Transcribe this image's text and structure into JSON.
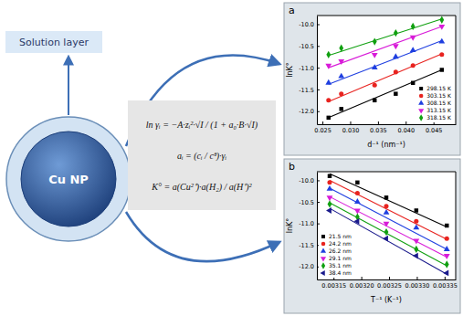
{
  "diagram": {
    "solution_layer": "Solution layer",
    "particle": "Cu NP",
    "equations": [
      "ln γᵢ = −A·zᵢ²·√I / (1 + a₀·B·√I)",
      "aᵢ = (cᵢ / cᶿ)·γᵢ",
      "K° = a(Cu²⁺)·a(H₂) / a(H⁺)²"
    ]
  },
  "chart_data": [
    {
      "type": "scatter",
      "title": "a",
      "x_label": "d⁻¹ (nm⁻¹)",
      "y_label": "lnK°",
      "x": [
        0.0261,
        0.0284,
        0.0344,
        0.0382,
        0.0413,
        0.0465
      ],
      "xlim": [
        0.024,
        0.049
      ],
      "xticks": [
        0.025,
        {
          "value": 0.03,
          "label": "0.030"
        },
        0.035,
        {
          "value": 0.04,
          "label": "0.040"
        },
        0.045
      ],
      "ylim": [
        -12.3,
        -9.8
      ],
      "yticks": [
        {
          "value": -12,
          "label": "-12.0"
        },
        -11.5,
        {
          "value": -11,
          "label": "-11.0"
        },
        -10.5,
        {
          "value": -10,
          "label": "-10.0"
        }
      ],
      "legend": "lower right",
      "series": [
        {
          "name": "298.15 K",
          "color": "#000000",
          "marker": "square",
          "values": [
            -12.15,
            -11.95,
            -11.75,
            -11.6,
            -11.35,
            -11.05
          ],
          "fit": [
            -12.15,
            -11.05
          ]
        },
        {
          "name": "303.15 K",
          "color": "#e8231f",
          "marker": "circle",
          "values": [
            -11.75,
            -11.6,
            -11.4,
            -11.1,
            -10.95,
            -10.7
          ],
          "fit": [
            -11.78,
            -10.68
          ]
        },
        {
          "name": "308.15 K",
          "color": "#1f3fe0",
          "marker": "triangle-up",
          "values": [
            -11.35,
            -11.2,
            -11.0,
            -10.75,
            -10.6,
            -10.4
          ],
          "fit": [
            -11.38,
            -10.38
          ]
        },
        {
          "name": "313.15 K",
          "color": "#d81bd8",
          "marker": "triangle-down",
          "values": [
            -10.95,
            -10.85,
            -10.7,
            -10.5,
            -10.3,
            -10.05
          ],
          "fit": [
            -11.0,
            -10.05
          ]
        },
        {
          "name": "318.15 K",
          "color": "#10a010",
          "marker": "diamond",
          "values": [
            -10.7,
            -10.55,
            -10.4,
            -10.2,
            -10.05,
            -9.9
          ],
          "fit": [
            -10.72,
            -9.88
          ]
        }
      ]
    },
    {
      "type": "scatter",
      "title": "b",
      "x_label": "T⁻¹ (K⁻¹)",
      "y_label": "lnK°",
      "x": [
        0.003143,
        0.003193,
        0.003245,
        0.003299,
        0.003354
      ],
      "xlim": [
        0.00312,
        0.00337
      ],
      "xticks": [
        0.00315,
        {
          "value": 0.0032,
          "label": "0.00320"
        },
        0.00325,
        {
          "value": 0.0033,
          "label": "0.00330"
        },
        0.00335
      ],
      "ylim": [
        -12.3,
        -9.8
      ],
      "yticks": [
        {
          "value": -12,
          "label": "-12.0"
        },
        -11.5,
        {
          "value": -11,
          "label": "-11.0"
        },
        -10.5,
        {
          "value": -10,
          "label": "-10.0"
        }
      ],
      "legend": "lower left",
      "series": [
        {
          "name": "21.5 nm",
          "color": "#000000",
          "marker": "square",
          "values": [
            -9.9,
            -10.05,
            -10.4,
            -10.7,
            -11.05
          ],
          "fit": [
            -9.85,
            -11.08
          ]
        },
        {
          "name": "24.2 nm",
          "color": "#e8231f",
          "marker": "circle",
          "values": [
            -10.05,
            -10.3,
            -10.6,
            -10.95,
            -11.35
          ],
          "fit": [
            -10.0,
            -11.37
          ]
        },
        {
          "name": "26.2 nm",
          "color": "#1f3fe0",
          "marker": "triangle-up",
          "values": [
            -10.2,
            -10.5,
            -10.75,
            -11.1,
            -11.6
          ],
          "fit": [
            -10.18,
            -11.6
          ]
        },
        {
          "name": "29.1 nm",
          "color": "#d81bd8",
          "marker": "triangle-down",
          "values": [
            -10.4,
            -10.7,
            -11.0,
            -11.4,
            -11.75
          ],
          "fit": [
            -10.38,
            -11.78
          ]
        },
        {
          "name": "35.1 nm",
          "color": "#10a010",
          "marker": "diamond",
          "values": [
            -10.55,
            -10.85,
            -11.2,
            -11.6,
            -11.95
          ],
          "fit": [
            -10.52,
            -11.98
          ]
        },
        {
          "name": "38.4 nm",
          "color": "#1a1a8c",
          "marker": "triangle-left",
          "values": [
            -10.7,
            -10.95,
            -11.35,
            -11.75,
            -12.15
          ],
          "fit": [
            -10.65,
            -12.18
          ]
        }
      ]
    }
  ]
}
